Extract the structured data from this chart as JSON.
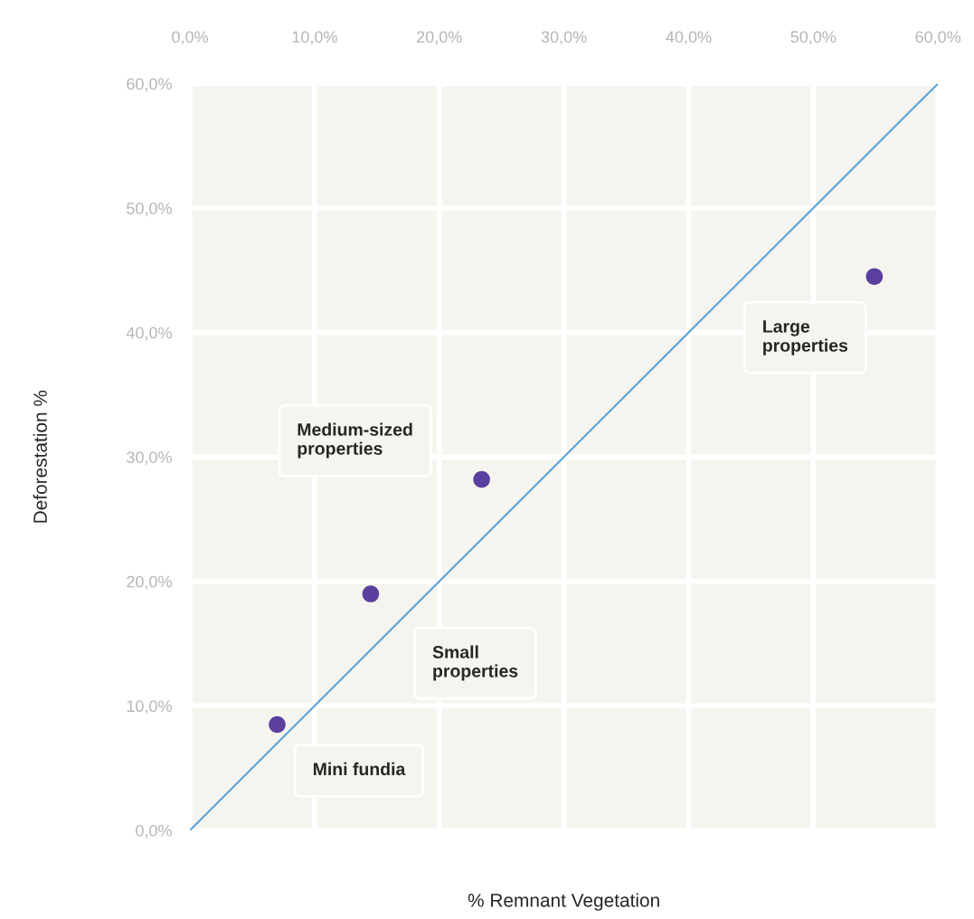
{
  "chart_data": {
    "type": "scatter",
    "xlabel": "% Remnant Vegetation",
    "ylabel": "Deforestation %",
    "xlim": [
      0,
      60
    ],
    "ylim": [
      0,
      60
    ],
    "xticks": [
      {
        "value": 0,
        "label": "0,0%"
      },
      {
        "value": 10,
        "label": "10,0%"
      },
      {
        "value": 20,
        "label": "20,0%"
      },
      {
        "value": 30,
        "label": "30,0%"
      },
      {
        "value": 40,
        "label": "40,0%"
      },
      {
        "value": 50,
        "label": "50,0%"
      },
      {
        "value": 60,
        "label": "60,0%"
      }
    ],
    "yticks": [
      {
        "value": 0,
        "label": "0,0%"
      },
      {
        "value": 10,
        "label": "10,0%"
      },
      {
        "value": 20,
        "label": "20,0%"
      },
      {
        "value": 30,
        "label": "30,0%"
      },
      {
        "value": 40,
        "label": "40,0%"
      },
      {
        "value": 50,
        "label": "50,0%"
      },
      {
        "value": 60,
        "label": "60,0%"
      }
    ],
    "grid": true,
    "series": [
      {
        "marker": "circle",
        "color": "#5a3f9e",
        "x": [
          7.0,
          14.5,
          23.4,
          54.9
        ],
        "values": [
          8.5,
          19.0,
          28.2,
          44.5
        ]
      },
      {
        "type": "line",
        "color": "#5ba3d9",
        "x": [
          0,
          60
        ],
        "values": [
          0,
          60
        ]
      }
    ],
    "annotations": [
      "Mini fundia",
      "Small\nproperties",
      "Medium-sized\nproperties",
      "Large\nproperties"
    ]
  }
}
